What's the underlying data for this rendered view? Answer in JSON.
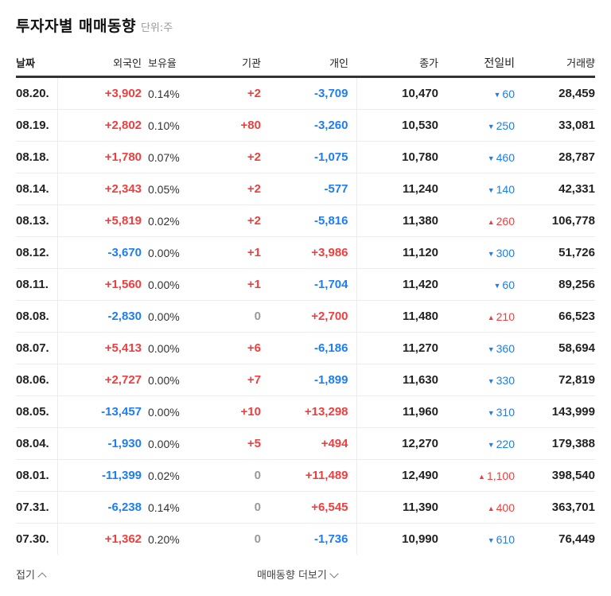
{
  "header": {
    "title": "투자자별 매매동향",
    "unit": "단위:주"
  },
  "columns": {
    "date": "날짜",
    "foreign": "외국인",
    "ratio": "보유율",
    "institution": "기관",
    "individual": "개인",
    "close": "종가",
    "change": "전일비",
    "volume": "거래량"
  },
  "colors": {
    "up": "#f03e3e",
    "down": "#1c7ef0",
    "zero": "#999999"
  },
  "rows": [
    {
      "date": "08.20.",
      "foreign": "+3,902",
      "foreign_dir": "up",
      "ratio": "0.14%",
      "institution": "+2",
      "institution_dir": "up",
      "individual": "-3,709",
      "individual_dir": "down",
      "close": "10,470",
      "change": "60",
      "change_dir": "down",
      "volume": "28,459"
    },
    {
      "date": "08.19.",
      "foreign": "+2,802",
      "foreign_dir": "up",
      "ratio": "0.10%",
      "institution": "+80",
      "institution_dir": "up",
      "individual": "-3,260",
      "individual_dir": "down",
      "close": "10,530",
      "change": "250",
      "change_dir": "down",
      "volume": "33,081"
    },
    {
      "date": "08.18.",
      "foreign": "+1,780",
      "foreign_dir": "up",
      "ratio": "0.07%",
      "institution": "+2",
      "institution_dir": "up",
      "individual": "-1,075",
      "individual_dir": "down",
      "close": "10,780",
      "change": "460",
      "change_dir": "down",
      "volume": "28,787"
    },
    {
      "date": "08.14.",
      "foreign": "+2,343",
      "foreign_dir": "up",
      "ratio": "0.05%",
      "institution": "+2",
      "institution_dir": "up",
      "individual": "-577",
      "individual_dir": "down",
      "close": "11,240",
      "change": "140",
      "change_dir": "down",
      "volume": "42,331"
    },
    {
      "date": "08.13.",
      "foreign": "+5,819",
      "foreign_dir": "up",
      "ratio": "0.02%",
      "institution": "+2",
      "institution_dir": "up",
      "individual": "-5,816",
      "individual_dir": "down",
      "close": "11,380",
      "change": "260",
      "change_dir": "up",
      "volume": "106,778"
    },
    {
      "date": "08.12.",
      "foreign": "-3,670",
      "foreign_dir": "down",
      "ratio": "0.00%",
      "institution": "+1",
      "institution_dir": "up",
      "individual": "+3,986",
      "individual_dir": "up",
      "close": "11,120",
      "change": "300",
      "change_dir": "down",
      "volume": "51,726"
    },
    {
      "date": "08.11.",
      "foreign": "+1,560",
      "foreign_dir": "up",
      "ratio": "0.00%",
      "institution": "+1",
      "institution_dir": "up",
      "individual": "-1,704",
      "individual_dir": "down",
      "close": "11,420",
      "change": "60",
      "change_dir": "down",
      "volume": "89,256"
    },
    {
      "date": "08.08.",
      "foreign": "-2,830",
      "foreign_dir": "down",
      "ratio": "0.00%",
      "institution": "0",
      "institution_dir": "zero",
      "individual": "+2,700",
      "individual_dir": "up",
      "close": "11,480",
      "change": "210",
      "change_dir": "up",
      "volume": "66,523"
    },
    {
      "date": "08.07.",
      "foreign": "+5,413",
      "foreign_dir": "up",
      "ratio": "0.00%",
      "institution": "+6",
      "institution_dir": "up",
      "individual": "-6,186",
      "individual_dir": "down",
      "close": "11,270",
      "change": "360",
      "change_dir": "down",
      "volume": "58,694"
    },
    {
      "date": "08.06.",
      "foreign": "+2,727",
      "foreign_dir": "up",
      "ratio": "0.00%",
      "institution": "+7",
      "institution_dir": "up",
      "individual": "-1,899",
      "individual_dir": "down",
      "close": "11,630",
      "change": "330",
      "change_dir": "down",
      "volume": "72,819"
    },
    {
      "date": "08.05.",
      "foreign": "-13,457",
      "foreign_dir": "down",
      "ratio": "0.00%",
      "institution": "+10",
      "institution_dir": "up",
      "individual": "+13,298",
      "individual_dir": "up",
      "close": "11,960",
      "change": "310",
      "change_dir": "down",
      "volume": "143,999"
    },
    {
      "date": "08.04.",
      "foreign": "-1,930",
      "foreign_dir": "down",
      "ratio": "0.00%",
      "institution": "+5",
      "institution_dir": "up",
      "individual": "+494",
      "individual_dir": "up",
      "close": "12,270",
      "change": "220",
      "change_dir": "down",
      "volume": "179,388"
    },
    {
      "date": "08.01.",
      "foreign": "-11,399",
      "foreign_dir": "down",
      "ratio": "0.02%",
      "institution": "0",
      "institution_dir": "zero",
      "individual": "+11,489",
      "individual_dir": "up",
      "close": "12,490",
      "change": "1,100",
      "change_dir": "up",
      "volume": "398,540"
    },
    {
      "date": "07.31.",
      "foreign": "-6,238",
      "foreign_dir": "down",
      "ratio": "0.14%",
      "institution": "0",
      "institution_dir": "zero",
      "individual": "+6,545",
      "individual_dir": "up",
      "close": "11,390",
      "change": "400",
      "change_dir": "up",
      "volume": "363,701"
    },
    {
      "date": "07.30.",
      "foreign": "+1,362",
      "foreign_dir": "up",
      "ratio": "0.20%",
      "institution": "0",
      "institution_dir": "zero",
      "individual": "-1,736",
      "individual_dir": "down",
      "close": "10,990",
      "change": "610",
      "change_dir": "down",
      "volume": "76,449"
    }
  ],
  "footer": {
    "fold_label": "접기",
    "more_label": "매매동향 더보기"
  }
}
